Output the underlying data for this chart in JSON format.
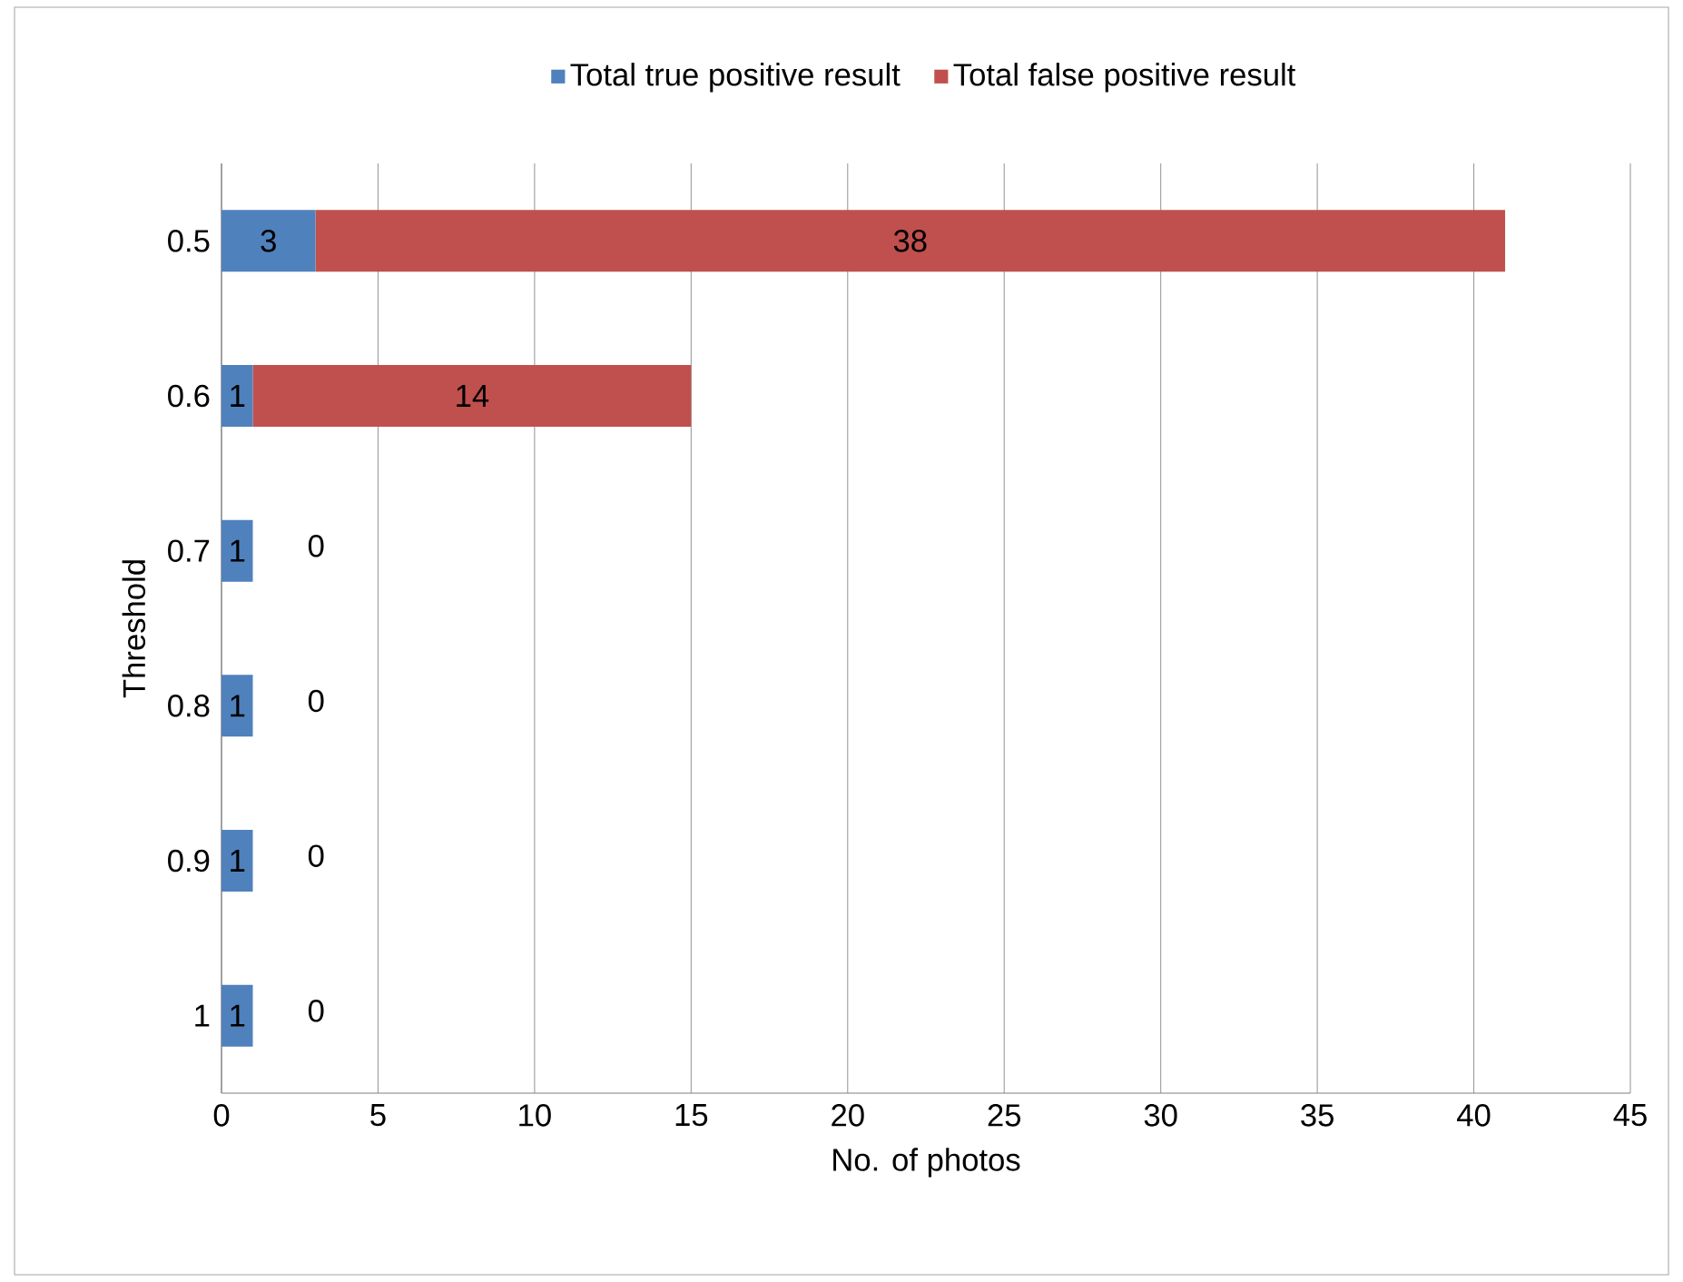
{
  "chart_data": {
    "type": "bar",
    "orientation": "horizontal",
    "stacked": true,
    "categories": [
      "0.5",
      "0.6",
      "0.7",
      "0.8",
      "0.9",
      "1"
    ],
    "series": [
      {
        "name": "Total true positive result",
        "color": "#4f81bd",
        "values": [
          3,
          1,
          1,
          1,
          1,
          1
        ]
      },
      {
        "name": "Total false positive result",
        "color": "#c0504d",
        "values": [
          38,
          14,
          0,
          0,
          0,
          0
        ]
      }
    ],
    "xlabel": "No. of photos",
    "ylabel": "Threshold",
    "xlim": [
      0,
      45
    ],
    "xticks": [
      0,
      5,
      10,
      15,
      20,
      25,
      30,
      35,
      40,
      45
    ],
    "grid": "x",
    "legend": "top",
    "data_labels": true
  }
}
